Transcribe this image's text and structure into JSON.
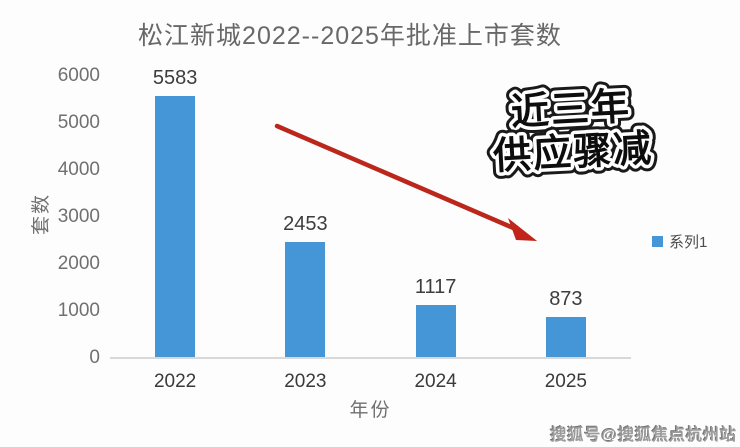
{
  "chart_data": {
    "type": "bar",
    "title": "松江新城2022--2025年批准上市套数",
    "categories": [
      "2022",
      "2023",
      "2024",
      "2025"
    ],
    "values": [
      5583,
      2453,
      1117,
      873
    ],
    "data_labels": [
      "5583",
      "2453",
      "1117",
      "873"
    ],
    "xlabel": "年份",
    "ylabel": "套数",
    "ylim": [
      0,
      6000
    ],
    "yticks": [
      0,
      1000,
      2000,
      3000,
      4000,
      5000,
      6000
    ],
    "grid": false,
    "bar_color": "#4596d7",
    "legend": {
      "position": "right",
      "entries": [
        {
          "label": "系列1",
          "color": "#4596d7"
        }
      ]
    },
    "annotation": {
      "lines": [
        "近三年",
        "供应骤减"
      ],
      "text_color": "#0d0d0d",
      "outline_color": "#ffffff",
      "arrow_color": "#bb271a"
    }
  },
  "watermark": {
    "text": "搜狐号@搜狐焦点杭州站"
  }
}
